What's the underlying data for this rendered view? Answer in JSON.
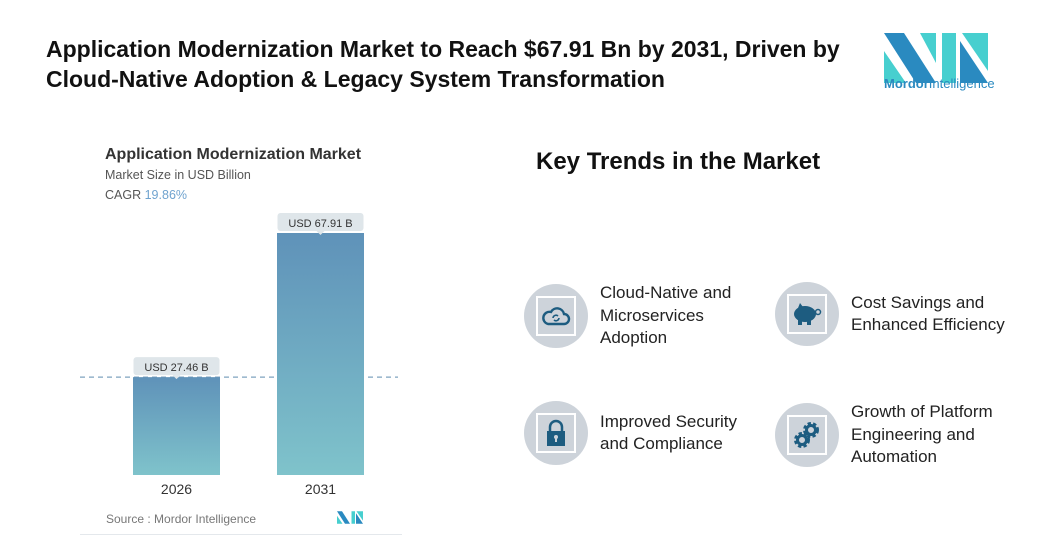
{
  "headline": "Application Modernization Market to Reach $67.91 Bn by 2031, Driven by Cloud-Native Adoption & Legacy System Transformation",
  "brand": {
    "name_bold": "Mordor",
    "name_regular": "Intelligence",
    "colors": {
      "dark": "#2a8ac0",
      "light": "#47cfcf"
    }
  },
  "chart_card": {
    "title": "Application Modernization Market",
    "subtitle": "Market Size in USD Billion",
    "cagr_label": "CAGR",
    "cagr_value": "19.86%",
    "source": "Source :  Mordor Intelligence"
  },
  "chart_data": {
    "type": "bar",
    "title": "Application Modernization Market",
    "ylabel": "Market Size in USD Billion",
    "categories": [
      "2026",
      "2031"
    ],
    "values": [
      27.46,
      67.91
    ],
    "data_labels": [
      "USD 27.46 B",
      "USD 67.91 B"
    ],
    "ylim": [
      0,
      67.91
    ],
    "grid": false,
    "reference_line": 27.46,
    "bar_gradient": [
      "#5f92b9",
      "#7fc3cb"
    ]
  },
  "trends": {
    "title": "Key Trends in the Market",
    "items": [
      {
        "label": "Cloud-Native and Microservices Adoption",
        "icon": "cloud-sync-icon"
      },
      {
        "label": "Cost Savings and Enhanced Efficiency",
        "icon": "piggy-bank-icon"
      },
      {
        "label": "Improved Security and Compliance",
        "icon": "lock-icon"
      },
      {
        "label": "Growth of Platform Engineering and Automation",
        "icon": "gears-icon"
      }
    ],
    "icon_color": "#1d5c80"
  }
}
